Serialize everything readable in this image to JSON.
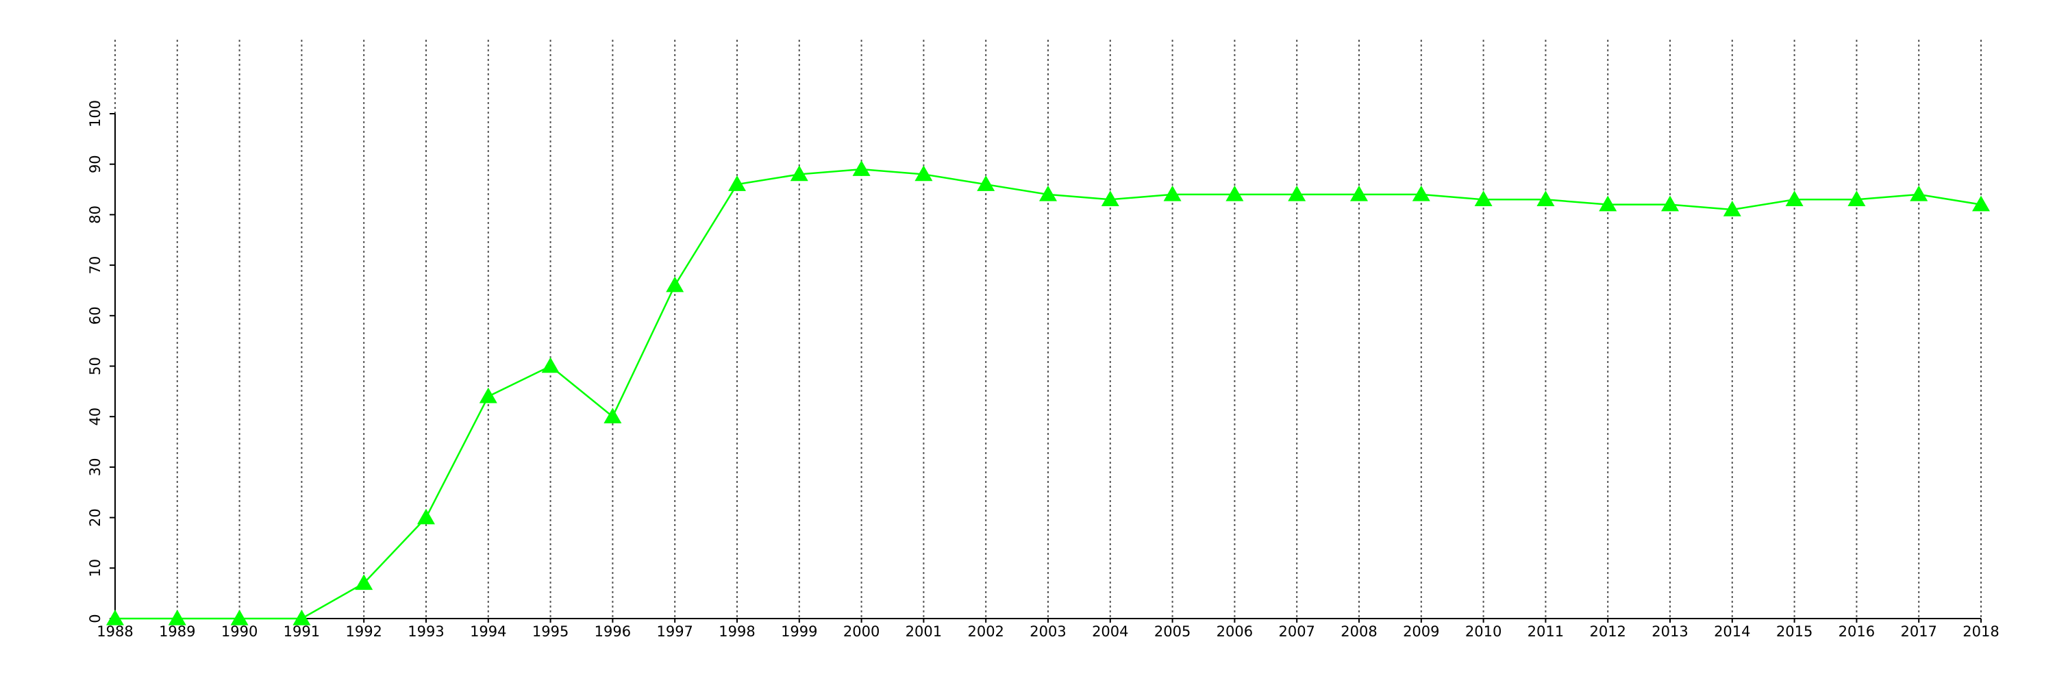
{
  "chart_data": {
    "type": "line",
    "x": [
      1988,
      1989,
      1990,
      1991,
      1992,
      1993,
      1994,
      1995,
      1996,
      1997,
      1998,
      1999,
      2000,
      2001,
      2002,
      2003,
      2004,
      2005,
      2006,
      2007,
      2008,
      2009,
      2010,
      2011,
      2012,
      2013,
      2014,
      2015,
      2016,
      2017,
      2018
    ],
    "series": [
      {
        "color": "#00ff00",
        "values": [
          0,
          0,
          0,
          0,
          7,
          20,
          44,
          50,
          40,
          66,
          86,
          88,
          89,
          88,
          86,
          84,
          83,
          84,
          84,
          84,
          84,
          84,
          83,
          83,
          82,
          82,
          81,
          83,
          83,
          84,
          82
        ]
      }
    ],
    "xlim": [
      1988,
      2018
    ],
    "xticks": [
      1988,
      1989,
      1990,
      1991,
      1992,
      1993,
      1994,
      1995,
      1996,
      1997,
      1998,
      1999,
      2000,
      2001,
      2002,
      2003,
      2004,
      2005,
      2006,
      2007,
      2008,
      2009,
      2010,
      2011,
      2012,
      2013,
      2014,
      2015,
      2016,
      2017,
      2018
    ],
    "ylim": [
      0,
      100
    ],
    "yticks": [
      0,
      10,
      20,
      30,
      40,
      50,
      60,
      70,
      80,
      90,
      100
    ],
    "grid": "x",
    "marker": "triangle"
  }
}
